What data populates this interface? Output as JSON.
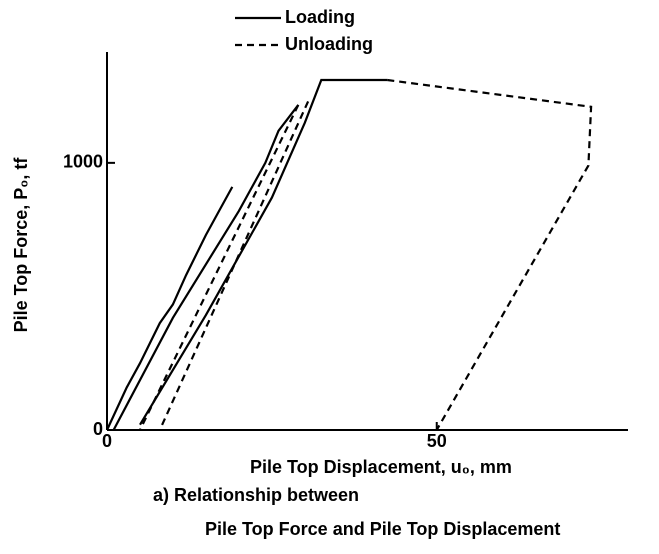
{
  "chart_data": {
    "type": "line",
    "ylabel": "Pile Top Force, P₀, tf",
    "xlabel": "Pile Top Displacement, u₀, mm",
    "caption": [
      "a) Relationship   between",
      "Pile Top Force and Pile Top Displacement"
    ],
    "xlim": [
      0,
      79
    ],
    "ylim": [
      0,
      1415
    ],
    "xticks": [
      0,
      50
    ],
    "yticks": [
      0,
      1000
    ],
    "legend": "top",
    "series": [
      {
        "name": "Loading",
        "color": "#000000",
        "dash": false,
        "x": [
          0,
          3,
          5,
          8,
          10,
          12,
          15,
          17,
          19,
          null,
          1,
          10,
          20,
          24,
          26,
          29,
          null,
          5,
          15,
          25,
          30,
          32.5,
          42.5
        ],
        "values": [
          0,
          160,
          250,
          400,
          470,
          580,
          730,
          820,
          910,
          null,
          0,
          420,
          820,
          1000,
          1120,
          1217,
          null,
          20,
          430,
          870,
          1150,
          1310,
          1310
        ]
      },
      {
        "name": "Unloading",
        "color": "#000000",
        "dash": true,
        "x": [
          29,
          5,
          null,
          30.5,
          8,
          null,
          42.5,
          73.4,
          73,
          50
        ],
        "values": [
          1217,
          0,
          null,
          1230,
          0,
          null,
          1310,
          1210,
          990,
          0
        ]
      }
    ]
  }
}
